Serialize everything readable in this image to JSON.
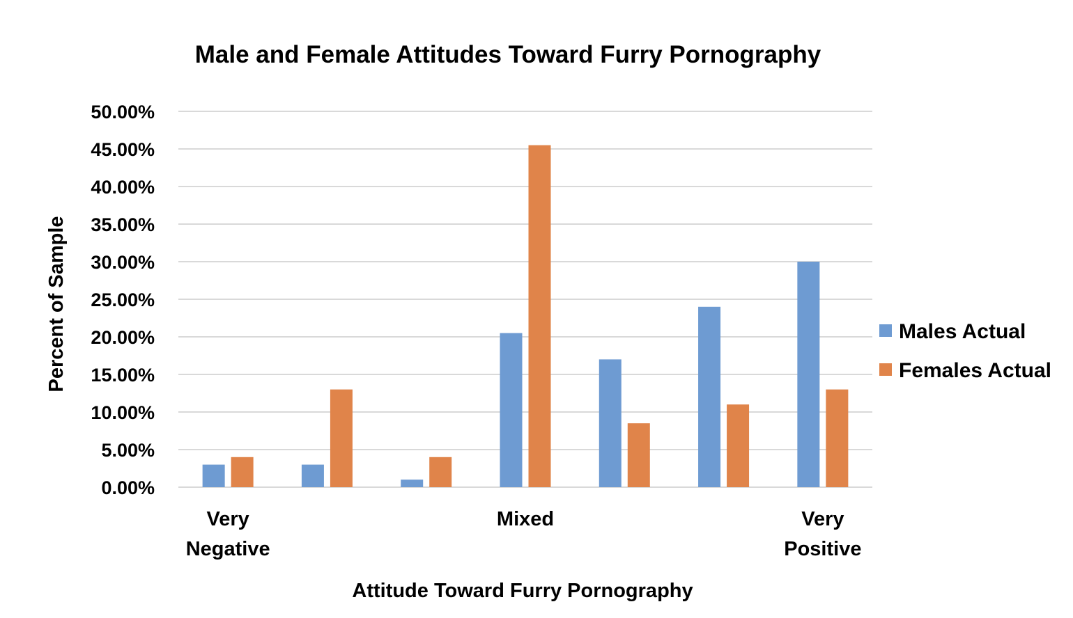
{
  "chart_data": {
    "type": "bar",
    "title": "Male and Female Attitudes Toward Furry Pornography",
    "xlabel": "Attitude Toward Furry Pornography",
    "ylabel": "Percent of Sample",
    "categories": [
      "1",
      "2",
      "3",
      "4",
      "5",
      "6",
      "7"
    ],
    "category_labels": [
      [
        "Very",
        "Negative"
      ],
      [],
      [],
      [
        "Mixed"
      ],
      [],
      [],
      [
        "Very",
        "Positive"
      ]
    ],
    "series": [
      {
        "name": "Males Actual",
        "color": "#6e9bd2",
        "values": [
          3.0,
          3.0,
          1.0,
          20.5,
          17.0,
          24.0,
          30.0
        ]
      },
      {
        "name": "Females Actual",
        "color": "#e0844a",
        "values": [
          4.0,
          13.0,
          4.0,
          45.5,
          8.5,
          11.0,
          13.0
        ]
      }
    ],
    "ylim": [
      0,
      50
    ],
    "yticks": [
      "0.00%",
      "5.00%",
      "10.00%",
      "15.00%",
      "20.00%",
      "25.00%",
      "30.00%",
      "35.00%",
      "40.00%",
      "45.00%",
      "50.00%"
    ],
    "grid": true,
    "legend_position": "right"
  }
}
